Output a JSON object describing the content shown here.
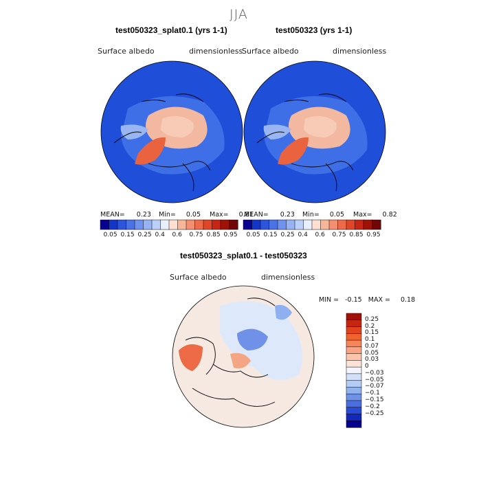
{
  "figure": {
    "season": "JJA"
  },
  "panels": [
    {
      "title": "test050323_splat0.1 (yrs 1-1)",
      "variable": "Surface albedo",
      "units": "dimensionless",
      "stats": {
        "mean_label": "MEAN=",
        "mean": "0.23",
        "min_label": "Min=",
        "min": "0.05",
        "max_label": "Max=",
        "max": "0.81"
      }
    },
    {
      "title": "test050323 (yrs 1-1)",
      "variable": "Surface albedo",
      "units": "dimensionless",
      "stats": {
        "mean_label": "MEAN=",
        "mean": "0.23",
        "min_label": "Min=",
        "min": "0.05",
        "max_label": "Max=",
        "max": "0.82"
      }
    }
  ],
  "abs_colorbar": {
    "labels": [
      "0.05",
      "0.15",
      "0.25",
      "0.4",
      "0.6",
      "0.75",
      "0.85",
      "0.95"
    ],
    "colors": [
      "#08008f",
      "#1436c8",
      "#2d55dc",
      "#4a72e6",
      "#6e92ee",
      "#96b3f4",
      "#bcd0f9",
      "#e8f0fd",
      "#fde0d2",
      "#f8b597",
      "#f38f6e",
      "#ee6a48",
      "#e04528",
      "#c82414",
      "#a01208",
      "#700606"
    ]
  },
  "diff_panel": {
    "title": "test050323_splat0.1 - test050323",
    "variable": "Surface albedo",
    "units": "dimensionless",
    "stats": {
      "min_label": "MIN =",
      "min": "-0.15",
      "max_label": "MAX =",
      "max": "0.18"
    }
  },
  "diff_colorbar": {
    "labels": [
      "0.25",
      "0.2",
      "0.15",
      "0.1",
      "0.07",
      "0.05",
      "0.03",
      "0",
      "-0.03",
      "-0.05",
      "-0.07",
      "-0.1",
      "-0.15",
      "-0.2",
      "-0.25"
    ],
    "colors": [
      "#a01208",
      "#c4260f",
      "#e0441e",
      "#f2622e",
      "#f7855a",
      "#f9a584",
      "#fbc4ab",
      "#fde2d5",
      "#f2f5fb",
      "#d2e0f8",
      "#b4ccf4",
      "#92b2ee",
      "#6d92e8",
      "#4a6fe0",
      "#2a4bd4",
      "#1228b8",
      "#08008f"
    ]
  },
  "map_colors": {
    "ocean_abs": "#1f4fd8",
    "ocean_abs_light": "#3e6fe6",
    "coast": "#000000",
    "diff_bg": "#d6e6fb"
  }
}
